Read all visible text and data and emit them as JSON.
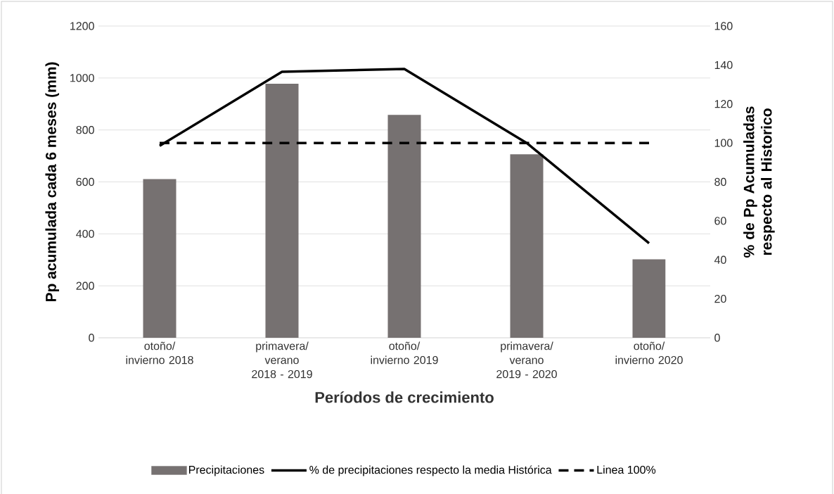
{
  "chart_data": {
    "type": "bar",
    "xlabel": "Períodos de crecimiento",
    "ylabel": "Pp acumulada cada 6 meses (mm)",
    "y2label": "% de Pp Acumuladas respecto al Historico",
    "categories": [
      "otoño/ invierno 2018",
      "primavera/ verano 2018 - 2019",
      "otoño/ invierno 2019",
      "primavera/ verano 2019 - 2020",
      "otoño/ invierno 2020"
    ],
    "series": [
      {
        "name": "Precipitaciones",
        "color": "#767171",
        "values": [
          611,
          978,
          858,
          706,
          302
        ]
      },
      {
        "name": "% de precipitaciones respecto la media Histórica",
        "type": "line",
        "axis": "y2",
        "color": "#000000",
        "line_style": "solid",
        "values": [
          98.5,
          136.5,
          138,
          100,
          48.5
        ]
      },
      {
        "name": "Linea 100%",
        "type": "line",
        "axis": "y2",
        "color": "#000000",
        "line_style": "dashed",
        "values": [
          100,
          100,
          100,
          100,
          100
        ]
      }
    ],
    "ylim": [
      0,
      1200
    ],
    "yticks": [
      0,
      200,
      400,
      600,
      800,
      1000,
      1200
    ],
    "y2lim": [
      0,
      160
    ],
    "y2ticks": [
      0,
      20,
      40,
      60,
      80,
      100,
      120,
      140,
      160
    ],
    "grid": "y",
    "legend": "bottom"
  }
}
